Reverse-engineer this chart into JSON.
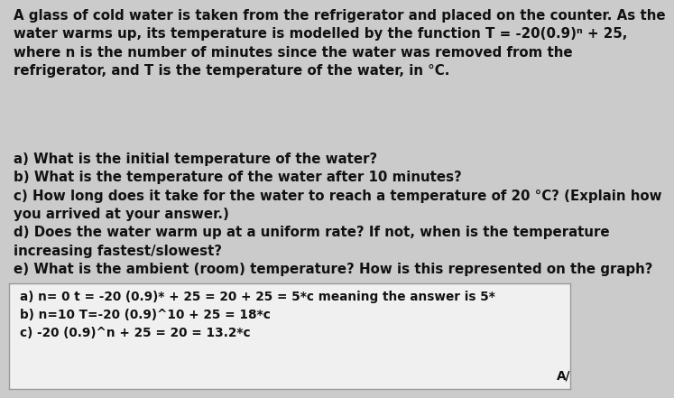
{
  "bg_color": "#cbcbcb",
  "box_bg_color": "#f0f0f0",
  "box_border_color": "#999999",
  "text_color": "#111111",
  "line1": "A glass of cold water is taken from the refrigerator and placed on the counter. As the",
  "line2": "water warms up, its temperature is modelled by the function T = -20(0.9)ⁿ + 25,",
  "line3": "where n is the number of minutes since the water was removed from the",
  "line4": "refrigerator, and T is the temperature of the water, in °C.",
  "blank_line": "",
  "qa": "a) What is the initial temperature of the water?\nb) What is the temperature of the water after 10 minutes?\nc) How long does it take for the water to reach a temperature of 20 °C? (Explain how\nyou arrived at your answer.)\nd) Does the water warm up at a uniform rate? If not, when is the temperature\nincreasing fastest/slowest?\ne) What is the ambient (room) temperature? How is this represented on the graph?",
  "answer_line1": "a) n= 0 t = -20 (0.9)* + 25 = 20 + 25 = 5*c meaning the answer is 5*",
  "answer_line2": "b) n=10 T=-20 (0.9)^10 + 25 = 18*c",
  "answer_line3": "c) -20 (0.9)^n + 25 = 20 = 13.2*c",
  "arrow": "A/",
  "fontsize_main": 10.8,
  "fontsize_answer": 9.8,
  "font_weight": "bold"
}
